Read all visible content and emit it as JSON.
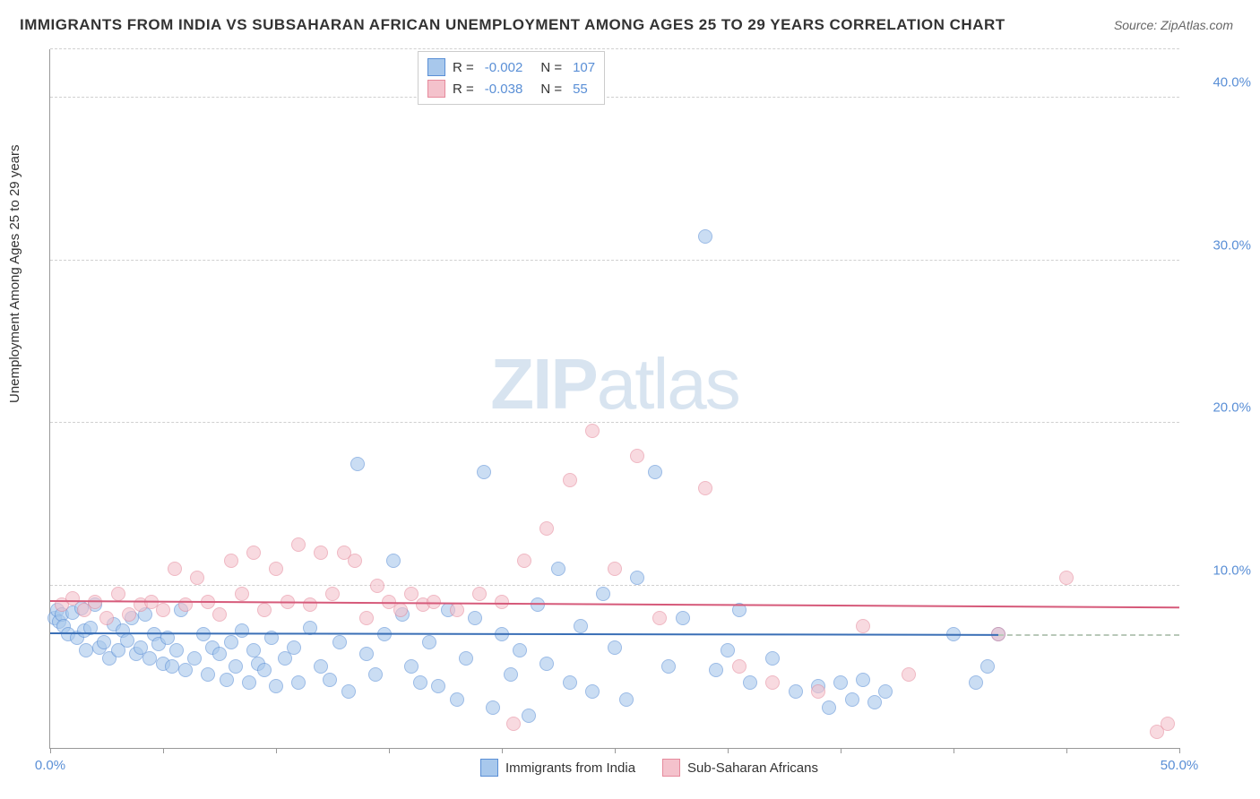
{
  "title": "IMMIGRANTS FROM INDIA VS SUBSAHARAN AFRICAN UNEMPLOYMENT AMONG AGES 25 TO 29 YEARS CORRELATION CHART",
  "source": "Source: ZipAtlas.com",
  "y_axis_label": "Unemployment Among Ages 25 to 29 years",
  "watermark": {
    "part1": "ZIP",
    "part2": "atlas"
  },
  "chart": {
    "type": "scatter",
    "background_color": "#ffffff",
    "grid_color": "#d0d0d0",
    "axis_color": "#999999",
    "tick_label_color": "#5a8fd6",
    "xlim": [
      0,
      50
    ],
    "ylim": [
      0,
      43
    ],
    "x_ticks": [
      0,
      5,
      10,
      15,
      20,
      25,
      30,
      35,
      40,
      45,
      50
    ],
    "x_tick_labels": {
      "0": "0.0%",
      "50": "50.0%"
    },
    "y_ticks": [
      10,
      20,
      30,
      40
    ],
    "y_tick_labels": {
      "10": "10.0%",
      "20": "20.0%",
      "30": "30.0%",
      "40": "40.0%"
    },
    "point_radius": 7,
    "series": [
      {
        "name": "Immigrants from India",
        "fill_color": "#a8c8ec",
        "stroke_color": "#5a8fd6",
        "fill_opacity": 0.6,
        "trend_color": "#3a6fb6",
        "trend_y_start": 7.0,
        "trend_y_end": 6.9,
        "trend_x_end": 42,
        "R": "-0.002",
        "N": "107",
        "data": [
          [
            0.2,
            8.0
          ],
          [
            0.3,
            8.5
          ],
          [
            0.4,
            7.8
          ],
          [
            0.5,
            8.2
          ],
          [
            0.6,
            7.5
          ],
          [
            0.8,
            7.0
          ],
          [
            1.0,
            8.3
          ],
          [
            1.2,
            6.8
          ],
          [
            1.4,
            8.6
          ],
          [
            1.5,
            7.2
          ],
          [
            1.6,
            6.0
          ],
          [
            1.8,
            7.4
          ],
          [
            2.0,
            8.8
          ],
          [
            2.2,
            6.2
          ],
          [
            2.4,
            6.5
          ],
          [
            2.6,
            5.5
          ],
          [
            2.8,
            7.6
          ],
          [
            3.0,
            6.0
          ],
          [
            3.2,
            7.2
          ],
          [
            3.4,
            6.6
          ],
          [
            3.6,
            8.0
          ],
          [
            3.8,
            5.8
          ],
          [
            4.0,
            6.2
          ],
          [
            4.2,
            8.2
          ],
          [
            4.4,
            5.5
          ],
          [
            4.6,
            7.0
          ],
          [
            4.8,
            6.4
          ],
          [
            5.0,
            5.2
          ],
          [
            5.2,
            6.8
          ],
          [
            5.4,
            5.0
          ],
          [
            5.6,
            6.0
          ],
          [
            5.8,
            8.5
          ],
          [
            6.0,
            4.8
          ],
          [
            6.4,
            5.5
          ],
          [
            6.8,
            7.0
          ],
          [
            7.0,
            4.5
          ],
          [
            7.2,
            6.2
          ],
          [
            7.5,
            5.8
          ],
          [
            7.8,
            4.2
          ],
          [
            8.0,
            6.5
          ],
          [
            8.2,
            5.0
          ],
          [
            8.5,
            7.2
          ],
          [
            8.8,
            4.0
          ],
          [
            9.0,
            6.0
          ],
          [
            9.2,
            5.2
          ],
          [
            9.5,
            4.8
          ],
          [
            9.8,
            6.8
          ],
          [
            10.0,
            3.8
          ],
          [
            10.4,
            5.5
          ],
          [
            10.8,
            6.2
          ],
          [
            11.0,
            4.0
          ],
          [
            11.5,
            7.4
          ],
          [
            12.0,
            5.0
          ],
          [
            12.4,
            4.2
          ],
          [
            12.8,
            6.5
          ],
          [
            13.2,
            3.5
          ],
          [
            13.6,
            17.5
          ],
          [
            14.0,
            5.8
          ],
          [
            14.4,
            4.5
          ],
          [
            14.8,
            7.0
          ],
          [
            15.2,
            11.5
          ],
          [
            15.6,
            8.2
          ],
          [
            16.0,
            5.0
          ],
          [
            16.4,
            4.0
          ],
          [
            16.8,
            6.5
          ],
          [
            17.2,
            3.8
          ],
          [
            17.6,
            8.5
          ],
          [
            18.0,
            3.0
          ],
          [
            18.4,
            5.5
          ],
          [
            18.8,
            8.0
          ],
          [
            19.2,
            17.0
          ],
          [
            19.6,
            2.5
          ],
          [
            20.0,
            7.0
          ],
          [
            20.4,
            4.5
          ],
          [
            20.8,
            6.0
          ],
          [
            21.2,
            2.0
          ],
          [
            21.6,
            8.8
          ],
          [
            22.0,
            5.2
          ],
          [
            22.5,
            11.0
          ],
          [
            23.0,
            4.0
          ],
          [
            23.5,
            7.5
          ],
          [
            24.0,
            3.5
          ],
          [
            24.5,
            9.5
          ],
          [
            25.0,
            6.2
          ],
          [
            25.5,
            3.0
          ],
          [
            26.0,
            10.5
          ],
          [
            26.8,
            17.0
          ],
          [
            27.4,
            5.0
          ],
          [
            28.0,
            8.0
          ],
          [
            29.0,
            31.5
          ],
          [
            29.5,
            4.8
          ],
          [
            30.0,
            6.0
          ],
          [
            30.5,
            8.5
          ],
          [
            31.0,
            4.0
          ],
          [
            32.0,
            5.5
          ],
          [
            33.0,
            3.5
          ],
          [
            34.0,
            3.8
          ],
          [
            34.5,
            2.5
          ],
          [
            35.0,
            4.0
          ],
          [
            35.5,
            3.0
          ],
          [
            36.0,
            4.2
          ],
          [
            36.5,
            2.8
          ],
          [
            37.0,
            3.5
          ],
          [
            40.0,
            7.0
          ],
          [
            41.0,
            4.0
          ],
          [
            41.5,
            5.0
          ],
          [
            42.0,
            7.0
          ]
        ]
      },
      {
        "name": "Sub-Saharan Africans",
        "fill_color": "#f4c2cc",
        "stroke_color": "#e68a9c",
        "fill_opacity": 0.6,
        "trend_color": "#d65a7a",
        "trend_y_start": 9.0,
        "trend_y_end": 8.6,
        "trend_x_end": 50,
        "R": "-0.038",
        "N": "55",
        "data": [
          [
            0.5,
            8.8
          ],
          [
            1.0,
            9.2
          ],
          [
            1.5,
            8.5
          ],
          [
            2.0,
            9.0
          ],
          [
            2.5,
            8.0
          ],
          [
            3.0,
            9.5
          ],
          [
            3.5,
            8.2
          ],
          [
            4.0,
            8.8
          ],
          [
            4.5,
            9.0
          ],
          [
            5.0,
            8.5
          ],
          [
            5.5,
            11.0
          ],
          [
            6.0,
            8.8
          ],
          [
            6.5,
            10.5
          ],
          [
            7.0,
            9.0
          ],
          [
            7.5,
            8.2
          ],
          [
            8.0,
            11.5
          ],
          [
            8.5,
            9.5
          ],
          [
            9.0,
            12.0
          ],
          [
            9.5,
            8.5
          ],
          [
            10.0,
            11.0
          ],
          [
            10.5,
            9.0
          ],
          [
            11.0,
            12.5
          ],
          [
            11.5,
            8.8
          ],
          [
            12.0,
            12.0
          ],
          [
            12.5,
            9.5
          ],
          [
            13.0,
            12.0
          ],
          [
            13.5,
            11.5
          ],
          [
            14.0,
            8.0
          ],
          [
            14.5,
            10.0
          ],
          [
            15.0,
            9.0
          ],
          [
            15.5,
            8.5
          ],
          [
            16.0,
            9.5
          ],
          [
            16.5,
            8.8
          ],
          [
            17.0,
            9.0
          ],
          [
            18.0,
            8.5
          ],
          [
            19.0,
            9.5
          ],
          [
            20.0,
            9.0
          ],
          [
            20.5,
            1.5
          ],
          [
            21.0,
            11.5
          ],
          [
            22.0,
            13.5
          ],
          [
            23.0,
            16.5
          ],
          [
            24.0,
            19.5
          ],
          [
            25.0,
            11.0
          ],
          [
            26.0,
            18.0
          ],
          [
            27.0,
            8.0
          ],
          [
            29.0,
            16.0
          ],
          [
            30.5,
            5.0
          ],
          [
            32.0,
            4.0
          ],
          [
            34.0,
            3.5
          ],
          [
            36.0,
            7.5
          ],
          [
            38.0,
            4.5
          ],
          [
            42.0,
            7.0
          ],
          [
            45.0,
            10.5
          ],
          [
            49.0,
            1.0
          ],
          [
            49.5,
            1.5
          ]
        ]
      }
    ]
  },
  "legend_top": {
    "rows": [
      {
        "swatch_fill": "#a8c8ec",
        "swatch_stroke": "#5a8fd6",
        "r_label": "R =",
        "r_val": "-0.002",
        "n_label": "N =",
        "n_val": "107"
      },
      {
        "swatch_fill": "#f4c2cc",
        "swatch_stroke": "#e68a9c",
        "r_label": "R =",
        "r_val": "-0.038",
        "n_label": "N =",
        "n_val": "55"
      }
    ]
  },
  "legend_bottom": {
    "items": [
      {
        "swatch_fill": "#a8c8ec",
        "swatch_stroke": "#5a8fd6",
        "label": "Immigrants from India"
      },
      {
        "swatch_fill": "#f4c2cc",
        "swatch_stroke": "#e68a9c",
        "label": "Sub-Saharan Africans"
      }
    ]
  }
}
